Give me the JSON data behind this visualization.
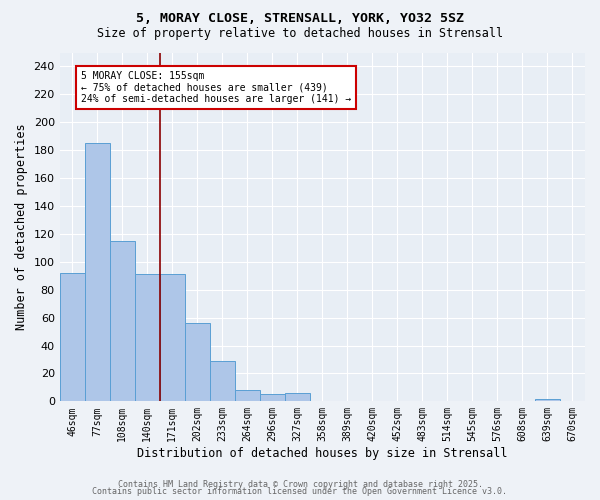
{
  "title1": "5, MORAY CLOSE, STRENSALL, YORK, YO32 5SZ",
  "title2": "Size of property relative to detached houses in Strensall",
  "xlabel": "Distribution of detached houses by size in Strensall",
  "ylabel": "Number of detached properties",
  "categories": [
    "46sqm",
    "77sqm",
    "108sqm",
    "140sqm",
    "171sqm",
    "202sqm",
    "233sqm",
    "264sqm",
    "296sqm",
    "327sqm",
    "358sqm",
    "389sqm",
    "420sqm",
    "452sqm",
    "483sqm",
    "514sqm",
    "545sqm",
    "576sqm",
    "608sqm",
    "639sqm",
    "670sqm"
  ],
  "values": [
    92,
    185,
    115,
    91,
    91,
    56,
    29,
    8,
    5,
    6,
    0,
    0,
    0,
    0,
    0,
    0,
    0,
    0,
    0,
    2,
    0
  ],
  "bar_color": "#aec6e8",
  "bar_edge_color": "#5a9fd4",
  "vline_color": "#8b0000",
  "annotation_text": "5 MORAY CLOSE: 155sqm\n← 75% of detached houses are smaller (439)\n24% of semi-detached houses are larger (141) →",
  "annotation_box_color": "#ffffff",
  "annotation_box_edge": "#cc0000",
  "ylim": [
    0,
    250
  ],
  "yticks": [
    0,
    20,
    40,
    60,
    80,
    100,
    120,
    140,
    160,
    180,
    200,
    220,
    240
  ],
  "bg_color": "#e8eef5",
  "fig_bg_color": "#eef2f7",
  "footer1": "Contains HM Land Registry data © Crown copyright and database right 2025.",
  "footer2": "Contains public sector information licensed under the Open Government Licence v3.0."
}
